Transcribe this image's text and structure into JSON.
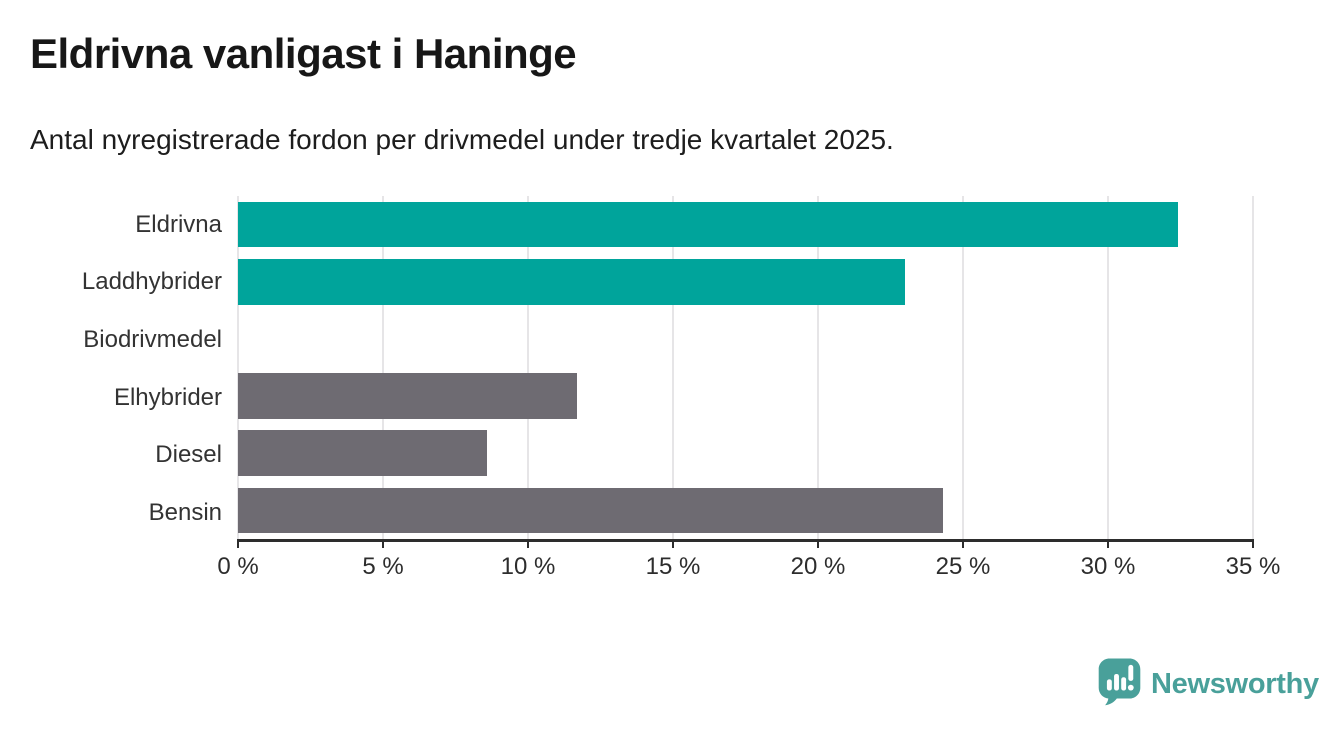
{
  "header": {
    "title": "Eldrivna vanligast i Haninge",
    "subtitle": "Antal nyregistrerade fordon per drivmedel under tredje kvartalet 2025."
  },
  "chart_data": {
    "type": "bar",
    "orientation": "horizontal",
    "title": "Eldrivna vanligast i Haninge",
    "subtitle": "Antal nyregistrerade fordon per drivmedel under tredje kvartalet 2025.",
    "categories": [
      "Eldrivna",
      "Laddhybrider",
      "Biodrivmedel",
      "Elhybrider",
      "Diesel",
      "Bensin"
    ],
    "values": [
      32.4,
      23.0,
      0,
      11.7,
      8.6,
      24.3
    ],
    "unit": "%",
    "bar_colors": [
      "#00a49b",
      "#00a49b",
      "#00a49b",
      "#6e6b72",
      "#6e6b72",
      "#6e6b72"
    ],
    "highlight_color": "#00a49b",
    "default_color": "#6e6b72",
    "xlabel": "",
    "ylabel": "",
    "xlim": [
      0,
      35
    ],
    "ticks": [
      0,
      5,
      10,
      15,
      20,
      25,
      30,
      35
    ],
    "tick_labels": [
      "0 %",
      "5 %",
      "10 %",
      "15 %",
      "20 %",
      "25 %",
      "30 %",
      "35 %"
    ],
    "grid": true,
    "gridline_color": "#e6e5e7",
    "axis_color": "#2d2d2d",
    "legend": "none"
  },
  "footer": {
    "brand": "Newsworthy",
    "brand_color": "#49a09a",
    "logo_icon": "bar-chart-speech-bubble-icon"
  }
}
